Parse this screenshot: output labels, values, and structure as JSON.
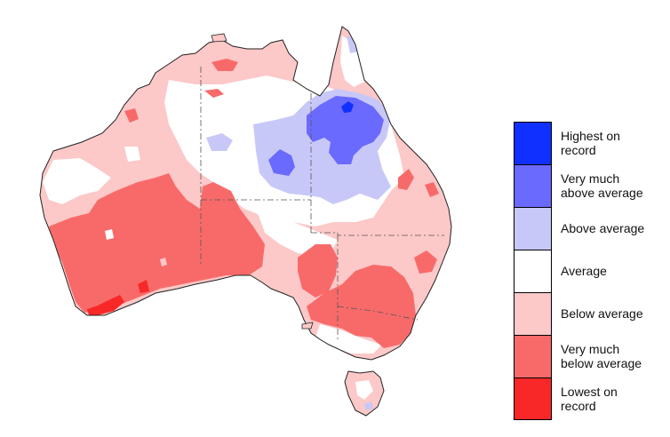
{
  "map": {
    "colors": {
      "highest": "#1030ff",
      "very_above": "#6a6aff",
      "above": "#c8c8f8",
      "average": "#ffffff",
      "below": "#fcc8c8",
      "very_below": "#f86a6a",
      "lowest": "#f82828",
      "outline": "#222222",
      "contour": "#444466"
    }
  },
  "legend": {
    "items": [
      {
        "label": "Highest on\nrecord",
        "color": "#1030ff"
      },
      {
        "label": "Very much\nabove average",
        "color": "#6a6aff"
      },
      {
        "label": "Above average",
        "color": "#c8c8f8"
      },
      {
        "label": "Average",
        "color": "#ffffff"
      },
      {
        "label": "Below average",
        "color": "#fcc8c8"
      },
      {
        "label": "Very much\nbelow average",
        "color": "#f86a6a"
      },
      {
        "label": "Lowest on\nrecord",
        "color": "#f82828"
      }
    ]
  }
}
